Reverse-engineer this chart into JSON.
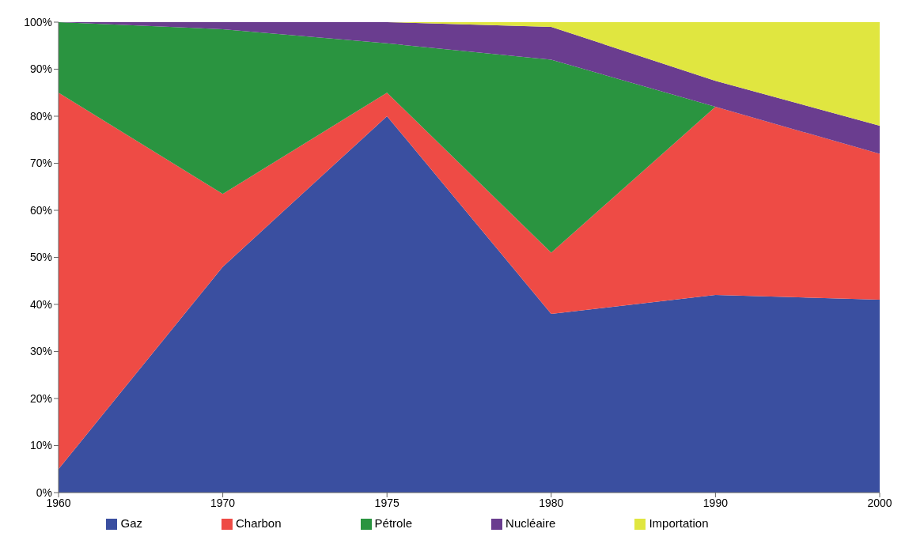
{
  "chart_data": {
    "type": "area",
    "stacked": true,
    "categories": [
      "1960",
      "1970",
      "1975",
      "1980",
      "1990",
      "2000"
    ],
    "series": [
      {
        "name": "Gaz",
        "color": "#3a4fa0",
        "values": [
          5,
          48,
          80,
          38,
          42,
          41
        ]
      },
      {
        "name": "Charbon",
        "color": "#ee4b45",
        "values": [
          80,
          15.5,
          5,
          13,
          40,
          31
        ]
      },
      {
        "name": "Pétrole",
        "color": "#2a9440",
        "values": [
          15,
          35,
          10.5,
          41,
          0,
          0
        ]
      },
      {
        "name": "Nucléaire",
        "color": "#6a3d8f",
        "values": [
          0,
          1.5,
          4.5,
          7,
          5.5,
          6
        ]
      },
      {
        "name": "Importation",
        "color": "#e0e640",
        "values": [
          0,
          0,
          0,
          1,
          12.5,
          22
        ]
      }
    ],
    "ylim": [
      0,
      100
    ],
    "yticks": [
      {
        "value": 0,
        "label": "0%"
      },
      {
        "value": 10,
        "label": "10%"
      },
      {
        "value": 20,
        "label": "20%"
      },
      {
        "value": 30,
        "label": "30%"
      },
      {
        "value": 40,
        "label": "40%"
      },
      {
        "value": 50,
        "label": "50%"
      },
      {
        "value": 60,
        "label": "60%"
      },
      {
        "value": 70,
        "label": "70%"
      },
      {
        "value": 80,
        "label": "80%"
      },
      {
        "value": 90,
        "label": "90%"
      },
      {
        "value": 100,
        "label": "100%"
      }
    ],
    "legend": "bottom"
  }
}
